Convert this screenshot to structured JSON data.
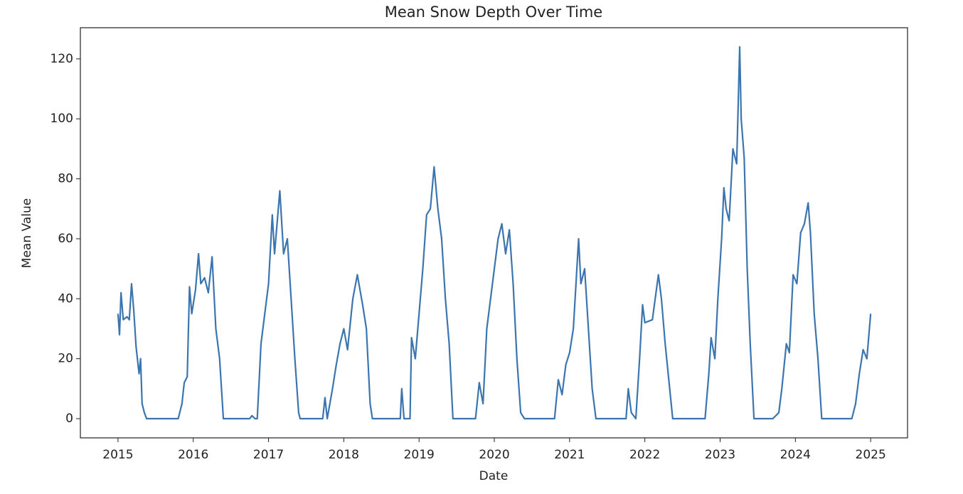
{
  "chart_data": {
    "type": "line",
    "title": "Mean Snow Depth Over Time",
    "xlabel": "Date",
    "ylabel": "Mean Value",
    "color": "#3b75af",
    "x": [
      2015.0,
      2015.02,
      2015.04,
      2015.07,
      2015.12,
      2015.15,
      2015.18,
      2015.21,
      2015.24,
      2015.28,
      2015.3,
      2015.32,
      2015.35,
      2015.38,
      2015.8,
      2015.85,
      2015.88,
      2015.92,
      2015.95,
      2015.98,
      2016.03,
      2016.07,
      2016.1,
      2016.15,
      2016.2,
      2016.25,
      2016.3,
      2016.35,
      2016.4,
      2016.75,
      2016.78,
      2016.82,
      2016.85,
      2016.9,
      2016.95,
      2017.0,
      2017.05,
      2017.08,
      2017.15,
      2017.2,
      2017.25,
      2017.3,
      2017.35,
      2017.4,
      2017.42,
      2017.72,
      2017.75,
      2017.78,
      2017.85,
      2017.9,
      2017.95,
      2018.0,
      2018.05,
      2018.12,
      2018.18,
      2018.25,
      2018.3,
      2018.35,
      2018.38,
      2018.75,
      2018.77,
      2018.8,
      2018.88,
      2018.9,
      2018.95,
      2019.0,
      2019.05,
      2019.1,
      2019.15,
      2019.2,
      2019.25,
      2019.3,
      2019.35,
      2019.4,
      2019.45,
      2019.75,
      2019.8,
      2019.85,
      2019.9,
      2019.95,
      2020.0,
      2020.05,
      2020.1,
      2020.15,
      2020.2,
      2020.25,
      2020.3,
      2020.35,
      2020.4,
      2020.8,
      2020.85,
      2020.9,
      2020.95,
      2021.0,
      2021.05,
      2021.12,
      2021.15,
      2021.2,
      2021.25,
      2021.3,
      2021.35,
      2021.75,
      2021.78,
      2021.82,
      2021.88,
      2021.93,
      2021.97,
      2022.0,
      2022.1,
      2022.18,
      2022.22,
      2022.27,
      2022.33,
      2022.37,
      2022.8,
      2022.85,
      2022.88,
      2022.93,
      2022.97,
      2023.02,
      2023.05,
      2023.08,
      2023.12,
      2023.17,
      2023.22,
      2023.26,
      2023.28,
      2023.32,
      2023.36,
      2023.4,
      2023.45,
      2023.7,
      2023.78,
      2023.82,
      2023.88,
      2023.92,
      2023.97,
      2024.02,
      2024.07,
      2024.12,
      2024.17,
      2024.2,
      2024.25,
      2024.3,
      2024.35,
      2024.75,
      2024.8,
      2024.85,
      2024.9,
      2024.95,
      2025.0
    ],
    "values": [
      35,
      28,
      42,
      33,
      34,
      33,
      45,
      36,
      24,
      15,
      20,
      5,
      2,
      0,
      0,
      5,
      12,
      14,
      44,
      35,
      43,
      55,
      45,
      47,
      42,
      54,
      30,
      20,
      0,
      0,
      1,
      0,
      0,
      25,
      35,
      45,
      68,
      55,
      76,
      55,
      60,
      40,
      20,
      2,
      0,
      0,
      7,
      0,
      10,
      18,
      25,
      30,
      23,
      40,
      48,
      38,
      30,
      5,
      0,
      0,
      10,
      0,
      0,
      27,
      20,
      35,
      50,
      68,
      70,
      84,
      70,
      60,
      40,
      25,
      0,
      0,
      12,
      5,
      30,
      40,
      50,
      60,
      65,
      55,
      63,
      45,
      20,
      2,
      0,
      0,
      13,
      8,
      18,
      22,
      30,
      60,
      45,
      50,
      30,
      10,
      0,
      0,
      10,
      2,
      0,
      20,
      38,
      32,
      33,
      48,
      40,
      25,
      10,
      0,
      0,
      15,
      27,
      20,
      40,
      60,
      77,
      70,
      66,
      90,
      85,
      124,
      100,
      87,
      50,
      25,
      0,
      0,
      2,
      10,
      25,
      22,
      48,
      45,
      62,
      65,
      72,
      62,
      35,
      20,
      0,
      0,
      5,
      15,
      23,
      20,
      35
    ],
    "xlim": [
      2014.5,
      2025.49
    ],
    "xticks": [
      2015,
      2016,
      2017,
      2018,
      2019,
      2020,
      2021,
      2022,
      2023,
      2024,
      2025
    ],
    "ylim": [
      -6.4,
      130.4
    ],
    "yticks": [
      0,
      20,
      40,
      60,
      80,
      100,
      120
    ]
  }
}
